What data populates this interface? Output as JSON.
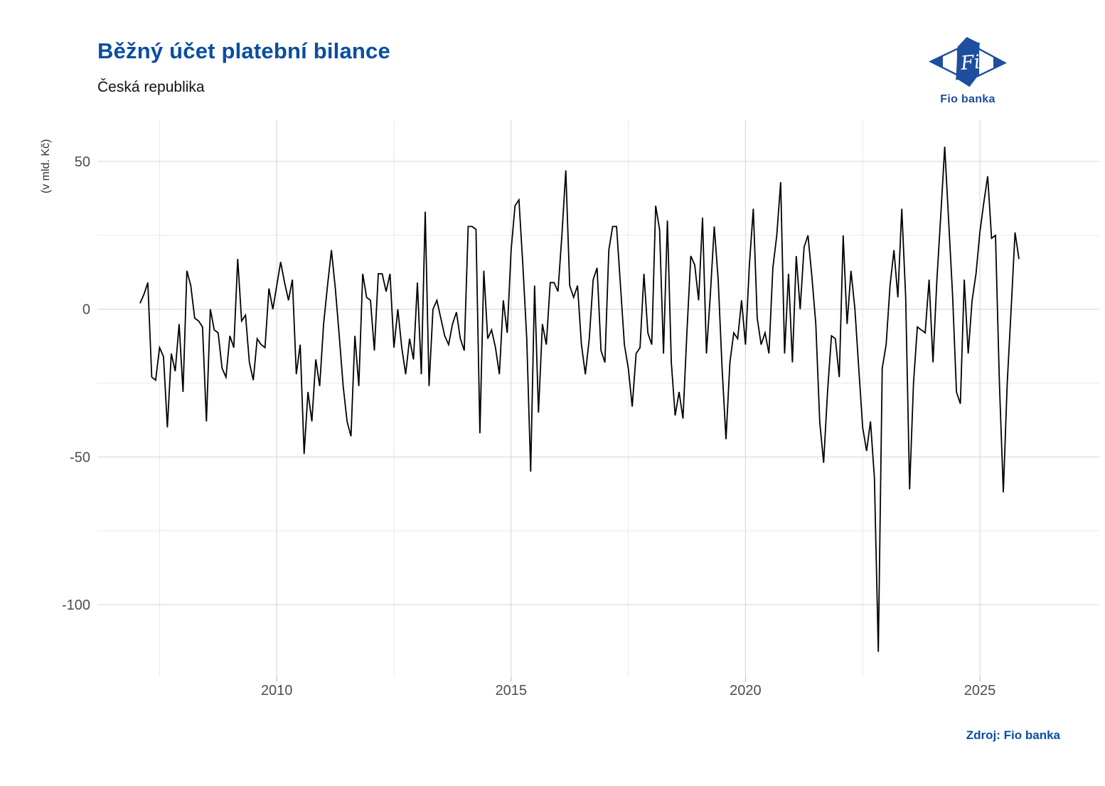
{
  "header": {
    "title": "Běžný účet platební bilance",
    "subtitle": "Česká republika"
  },
  "logo": {
    "text": "Fio",
    "caption": "Fio banka",
    "color": "#1d4f9e"
  },
  "source": {
    "label": "Zdroj: Fio banka"
  },
  "colors": {
    "title": "#0a4da2",
    "axis_text": "#4d4d4d",
    "grid_major": "#d4d4d4",
    "grid_minor": "#e9e9e9",
    "tick": "#b0b0b0",
    "line": "#000000"
  },
  "chart_data": {
    "type": "line",
    "title": "Běžný účet platební bilance",
    "subtitle": "Česká republika",
    "ylabel": "(v mld. Kč)",
    "unit": "mld. Kč",
    "frequency": "monthly",
    "start": "2007-02",
    "end": "2025-11",
    "x_ticks": [
      2010,
      2015,
      2020,
      2025
    ],
    "x_minor_ticks": [
      2007.5,
      2012.5,
      2017.5,
      2022.5
    ],
    "y_ticks": [
      50,
      0,
      -50,
      -100
    ],
    "y_minor_ticks": [
      25,
      -25,
      -75
    ],
    "ylim": [
      -124,
      64
    ],
    "grid": true,
    "legend": false,
    "series_name": "Běžný účet platební bilance (měsíčně)",
    "values": [
      2,
      5,
      9,
      -23,
      -24,
      -13,
      -16,
      -40,
      -15,
      -21,
      -5,
      -28,
      13,
      8,
      -3,
      -4,
      -6,
      -38,
      0,
      -7,
      -8,
      -20,
      -23,
      -9,
      -13,
      17,
      -4,
      -2,
      -18,
      -24,
      -10,
      -12,
      -13,
      7,
      0,
      8,
      16,
      9,
      3,
      10,
      -22,
      -12,
      -49,
      -28,
      -38,
      -17,
      -26,
      -5,
      8,
      20,
      7,
      -9,
      -26,
      -38,
      -43,
      -9,
      -26,
      12,
      4,
      3,
      -14,
      12,
      12,
      6,
      12,
      -13,
      0,
      -13,
      -22,
      -10,
      -17,
      9,
      -22,
      33,
      -26,
      0,
      3,
      -3,
      -9,
      -12,
      -5,
      -1,
      -10,
      -14,
      28,
      28,
      27,
      -42,
      13,
      -10,
      -7,
      -13,
      -22,
      3,
      -8,
      20,
      35,
      37,
      15,
      -10,
      -55,
      8,
      -35,
      -5,
      -12,
      9,
      9,
      6,
      25,
      47,
      8,
      4,
      8,
      -12,
      -22,
      -10,
      10,
      14,
      -14,
      -18,
      20,
      28,
      28,
      8,
      -12,
      -20,
      -33,
      -15,
      -13,
      12,
      -8,
      -12,
      35,
      27,
      -15,
      30,
      -18,
      -36,
      -28,
      -37,
      -8,
      18,
      15,
      3,
      31,
      -15,
      5,
      28,
      10,
      -20,
      -44,
      -18,
      -8,
      -10,
      3,
      -12,
      15,
      34,
      -3,
      -12,
      -8,
      -15,
      14,
      25,
      43,
      -15,
      12,
      -18,
      18,
      0,
      21,
      25,
      11,
      -5,
      -38,
      -52,
      -28,
      -9,
      -10,
      -23,
      25,
      -5,
      13,
      0,
      -20,
      -40,
      -48,
      -38,
      -57,
      -116,
      -20,
      -12,
      8,
      20,
      4,
      34,
      4,
      -61,
      -25,
      -6,
      -7,
      -8,
      10,
      -18,
      10,
      32,
      55,
      30,
      5,
      -28,
      -32,
      10,
      -15,
      3,
      12,
      26,
      36,
      45,
      24,
      25,
      -25,
      -62,
      -25,
      0,
      26,
      17
    ]
  }
}
